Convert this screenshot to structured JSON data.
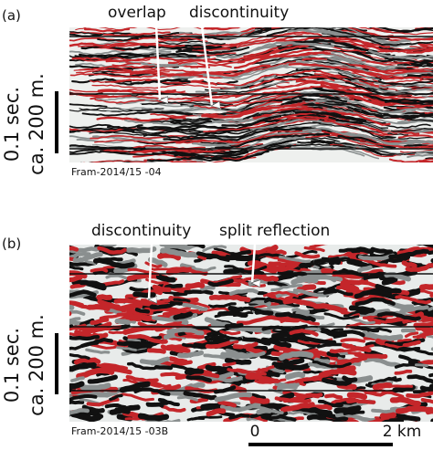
{
  "panels": [
    {
      "label": "(a)",
      "annotations": [
        "overlap",
        "discontinuity"
      ],
      "scale_time": "0.1 sec.",
      "scale_depth": "ca. 200 m.",
      "profile": "Fram-2014/15 -04"
    },
    {
      "label": "(b)",
      "annotations": [
        "discontinuity",
        "split reflection"
      ],
      "scale_time": "0.1 sec.",
      "scale_depth": "ca. 200 m.",
      "profile": "Fram-2014/15 -03B"
    }
  ],
  "scale_bar": {
    "start": "0",
    "end": "2 km"
  }
}
